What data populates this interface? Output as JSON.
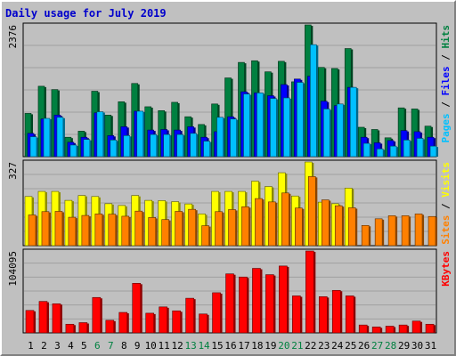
{
  "chart_data": {
    "type": "bar",
    "title": "Daily usage for July 2019",
    "categories": [
      "1",
      "2",
      "3",
      "4",
      "5",
      "6",
      "7",
      "8",
      "9",
      "10",
      "11",
      "12",
      "13",
      "14",
      "15",
      "16",
      "17",
      "18",
      "19",
      "20",
      "21",
      "22",
      "23",
      "24",
      "25",
      "26",
      "27",
      "28",
      "29",
      "30",
      "31"
    ],
    "weekend_days": [
      "6",
      "7",
      "13",
      "14",
      "20",
      "21",
      "27",
      "28"
    ],
    "colors": {
      "hits": "#008040",
      "files": "#0000ff",
      "pages": "#00c0ff",
      "visits": "#ffff00",
      "sites": "#ff8000",
      "kbytes": "#ff0000",
      "title": "#0000cc",
      "weekend_label": "#008040",
      "weekday_label": "#000000",
      "panel_bg": "#c0c0c0",
      "grid": "#a0a0a0"
    },
    "panels": [
      {
        "id": "hits-files-pages",
        "ymax_label": "2376",
        "ymax": 2376,
        "legend": [
          {
            "text": "Pages",
            "color": "#00c0ff"
          },
          {
            "text": " / ",
            "color": "#000000"
          },
          {
            "text": "Files",
            "color": "#0000ff"
          },
          {
            "text": " / ",
            "color": "#000000"
          },
          {
            "text": "Hits",
            "color": "#008040"
          }
        ],
        "series": [
          {
            "name": "Hits",
            "color": "#008040",
            "values": [
              780,
              1270,
              1210,
              350,
              460,
              1180,
              750,
              990,
              1320,
              900,
              830,
              980,
              720,
              580,
              950,
              1420,
              1700,
              1730,
              1530,
              1720,
              1350,
              2376,
              1610,
              1590,
              1950,
              530,
              490,
              340,
              880,
              860,
              550
            ]
          },
          {
            "name": "Files",
            "color": "#0000ff",
            "values": [
              420,
              680,
              750,
              260,
              350,
              790,
              380,
              540,
              820,
              480,
              490,
              480,
              540,
              350,
              450,
              720,
              1170,
              1150,
              1100,
              1300,
              1400,
              1450,
              1000,
              920,
              1250,
              350,
              250,
              290,
              470,
              450,
              350
            ]
          },
          {
            "name": "Pages",
            "color": "#00c0ff",
            "values": [
              360,
              690,
              710,
              210,
              310,
              810,
              300,
              380,
              820,
              400,
              400,
              400,
              420,
              280,
              710,
              680,
              1130,
              1150,
              1050,
              1060,
              1340,
              2020,
              860,
              950,
              1250,
              240,
              140,
              190,
              300,
              330,
              190
            ]
          }
        ]
      },
      {
        "id": "visits-sites",
        "ymax_label": "327",
        "ymax": 327,
        "legend": [
          {
            "text": "Sites",
            "color": "#ff8000"
          },
          {
            "text": " / ",
            "color": "#000000"
          },
          {
            "text": "Visits",
            "color": "#ffff00"
          }
        ],
        "series": [
          {
            "name": "Visits",
            "color": "#ffff00",
            "values": [
              192,
              212,
              212,
              177,
              196,
              192,
              164,
              157,
              196,
              177,
              176,
              172,
              163,
              124,
              212,
              212,
              212,
              252,
              231,
              285,
              194,
              327,
              170,
              164,
              225,
              0,
              0,
              0,
              0,
              0,
              0
            ]
          },
          {
            "name": "Sites",
            "color": "#ff8000",
            "values": [
              120,
              133,
              134,
              111,
              118,
              124,
              123,
              115,
              135,
              110,
              102,
              134,
              142,
              78,
              133,
              141,
              152,
              184,
              171,
              206,
              147,
              270,
              179,
              156,
              148,
              79,
              105,
              117,
              117,
              124,
              114
            ]
          }
        ]
      },
      {
        "id": "kbytes",
        "ymax_label": "104095",
        "ymax": 104095,
        "legend": [
          {
            "text": "KBytes",
            "color": "#ff0000"
          }
        ],
        "series": [
          {
            "name": "KBytes",
            "color": "#ff0000",
            "values": [
              28500,
              40000,
              37000,
              11000,
              13000,
              45000,
              16000,
              26000,
              63000,
              25000,
              33000,
              28000,
              44000,
              24000,
              51000,
              75000,
              71000,
              82000,
              74000,
              85000,
              47000,
              104095,
              46000,
              54000,
              47000,
              10000,
              7500,
              8500,
              10000,
              15000,
              11000
            ]
          }
        ]
      }
    ]
  }
}
